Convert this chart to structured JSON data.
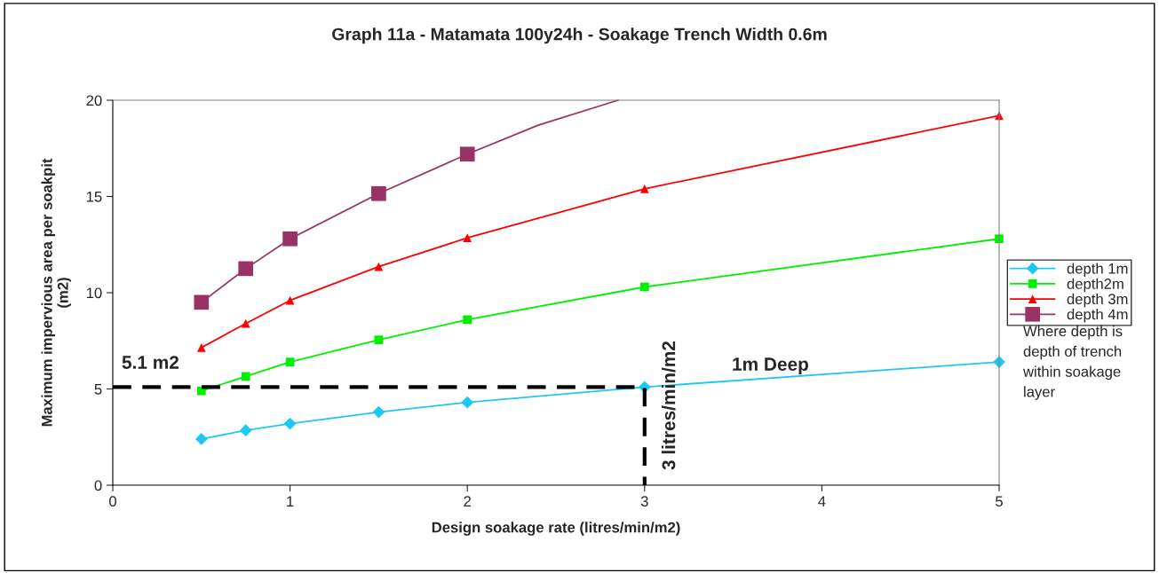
{
  "chart_data": {
    "type": "line",
    "title": "Graph 11a - Matamata 100y24h - Soakage Trench Width 0.6m",
    "xlabel": "Design soakage rate (litres/min/m2)",
    "ylabel": "Maximum impervious area per soakpit\n(m2)",
    "xlim": [
      0,
      5
    ],
    "ylim": [
      0,
      20
    ],
    "xticks": [
      0,
      1,
      2,
      3,
      4,
      5
    ],
    "yticks": [
      0,
      5,
      10,
      15,
      20
    ],
    "grid": false,
    "legend": "right",
    "x": [
      0.5,
      0.75,
      1,
      1.5,
      2,
      3,
      5
    ],
    "series": [
      {
        "name": "depth 1m",
        "color": "#1ec8f5",
        "marker": "diamond",
        "values": [
          2.4,
          2.85,
          3.2,
          3.8,
          4.3,
          5.1,
          6.4
        ]
      },
      {
        "name": "depth2m",
        "color": "#00f000",
        "marker": "square",
        "values": [
          4.9,
          5.65,
          6.4,
          7.55,
          8.6,
          10.3,
          12.8
        ]
      },
      {
        "name": "depth 3m",
        "color": "#ff0000",
        "marker": "triangle",
        "values": [
          7.15,
          8.4,
          9.6,
          11.35,
          12.85,
          15.4,
          19.2
        ]
      },
      {
        "name": "depth 4m",
        "color": "#993366",
        "marker": "square",
        "x": [
          0.5,
          0.75,
          1,
          1.5,
          2
        ],
        "values": [
          9.5,
          11.25,
          12.8,
          15.15,
          17.2
        ]
      },
      {
        "color": "#993366",
        "marker": "none",
        "x": [
          2,
          2.4,
          2.85
        ],
        "values": [
          17.2,
          18.7,
          20
        ]
      },
      {
        "color": "#000000",
        "marker": "none",
        "line_style": "dashed",
        "x": [
          0,
          3,
          3
        ],
        "values": [
          5.1,
          5.1,
          0
        ]
      }
    ],
    "annotations": [
      "5.1 m2",
      "3 litres/min/m2",
      "1m Deep",
      "Where depth is\ndepth of trench\nwithin soakage\nlayer"
    ]
  }
}
